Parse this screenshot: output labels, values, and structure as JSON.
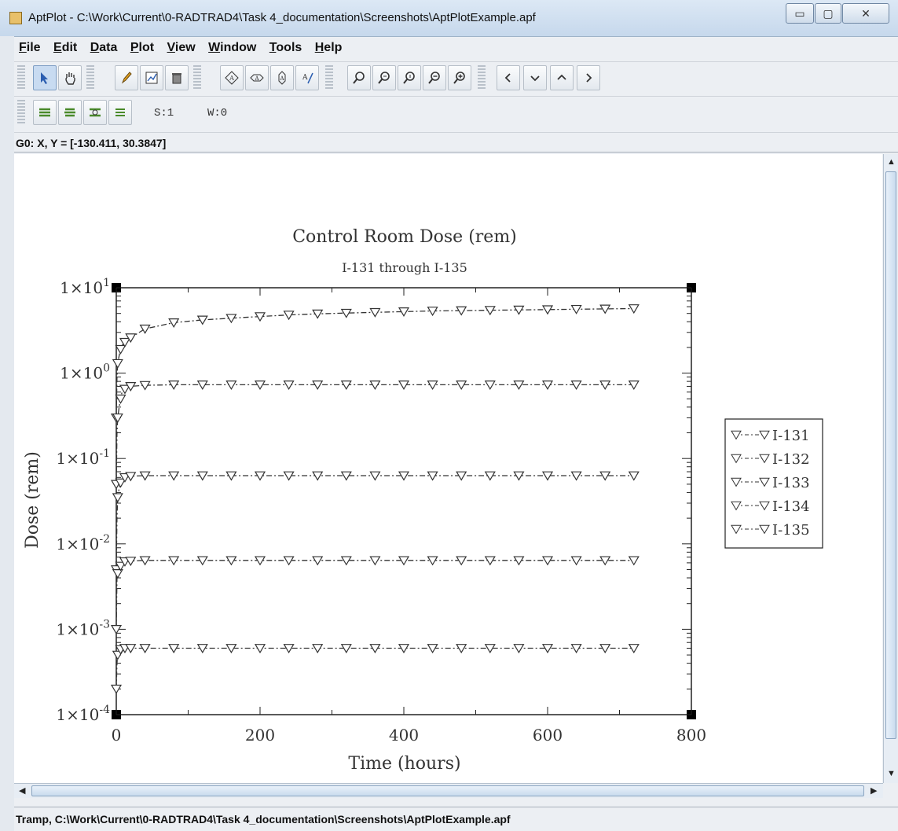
{
  "window": {
    "title": "AptPlot - C:\\Work\\Current\\0-RADTRAD4\\Task 4_documentation\\Screenshots\\AptPlotExample.apf",
    "controls": {
      "minimize": "▭",
      "maximize": "▢",
      "close": "✕"
    }
  },
  "menubar": {
    "items": [
      {
        "u": "F",
        "rest": "ile"
      },
      {
        "u": "E",
        "rest": "dit"
      },
      {
        "u": "D",
        "rest": "ata"
      },
      {
        "u": "P",
        "rest": "lot"
      },
      {
        "u": "V",
        "rest": "iew"
      },
      {
        "u": "W",
        "rest": "indow"
      },
      {
        "u": "T",
        "rest": "ools"
      },
      {
        "u": "H",
        "rest": "elp"
      }
    ]
  },
  "toolbar2": {
    "s_label": "S:1",
    "w_label": "W:0"
  },
  "coord_readout": "G0: X, Y = [-130.411, 30.3847]",
  "statusbar": {
    "text": "Tramp, C:\\Work\\Current\\0-RADTRAD4\\Task 4_documentation\\Screenshots\\AptPlotExample.apf"
  },
  "colors": {
    "accent": "#7f9fc4",
    "plot_line": "#333333"
  },
  "chart_data": {
    "type": "line",
    "title": "Control Room Dose (rem)",
    "subtitle": "I-131 through I-135",
    "xlabel": "Time (hours)",
    "ylabel": "Dose (rem)",
    "xlim": [
      0,
      800
    ],
    "ylim": [
      0.0001,
      10
    ],
    "yscale": "log",
    "x_ticks": [
      "0",
      "200",
      "400",
      "600",
      "800"
    ],
    "y_ticks": [
      {
        "base": "1×10",
        "exp": "1",
        "value": 10
      },
      {
        "base": "1×10",
        "exp": "0",
        "value": 1
      },
      {
        "base": "1×10",
        "exp": "-1",
        "value": 0.1
      },
      {
        "base": "1×10",
        "exp": "-2",
        "value": 0.01
      },
      {
        "base": "1×10",
        "exp": "-3",
        "value": 0.001
      },
      {
        "base": "1×10",
        "exp": "-4",
        "value": 0.0001
      }
    ],
    "legend_position": "right",
    "marker": "triangle-down",
    "series": [
      {
        "name": "I-131",
        "x": [
          0,
          1,
          2,
          4,
          6,
          8,
          12,
          20,
          40,
          80,
          120,
          160,
          200,
          240,
          280,
          320,
          360,
          400,
          440,
          480,
          520,
          560,
          600,
          640,
          680,
          720
        ],
        "y": [
          0.3,
          0.9,
          1.3,
          1.6,
          1.9,
          2.1,
          2.3,
          2.6,
          3.3,
          3.9,
          4.2,
          4.4,
          4.6,
          4.8,
          4.95,
          5.05,
          5.15,
          5.25,
          5.35,
          5.4,
          5.45,
          5.5,
          5.55,
          5.6,
          5.65,
          5.7
        ]
      },
      {
        "name": "I-132",
        "x": [
          0,
          1,
          2,
          4,
          6,
          8,
          12,
          20,
          40,
          80,
          120,
          160,
          200,
          240,
          280,
          320,
          360,
          400,
          440,
          480,
          520,
          560,
          600,
          640,
          680,
          720
        ],
        "y": [
          0.05,
          0.2,
          0.3,
          0.4,
          0.5,
          0.6,
          0.65,
          0.7,
          0.72,
          0.73,
          0.73,
          0.73,
          0.73,
          0.73,
          0.73,
          0.73,
          0.73,
          0.73,
          0.73,
          0.73,
          0.73,
          0.73,
          0.73,
          0.73,
          0.73,
          0.73
        ]
      },
      {
        "name": "I-133",
        "x": [
          0,
          1,
          2,
          4,
          6,
          8,
          12,
          20,
          40,
          80,
          120,
          160,
          200,
          240,
          280,
          320,
          360,
          400,
          440,
          480,
          520,
          560,
          600,
          640,
          680,
          720
        ],
        "y": [
          0.005,
          0.02,
          0.035,
          0.045,
          0.052,
          0.056,
          0.06,
          0.062,
          0.063,
          0.063,
          0.063,
          0.063,
          0.063,
          0.063,
          0.063,
          0.063,
          0.063,
          0.063,
          0.063,
          0.063,
          0.063,
          0.063,
          0.063,
          0.063,
          0.063,
          0.063
        ]
      },
      {
        "name": "I-134",
        "x": [
          0,
          1,
          2,
          4,
          6,
          8,
          12,
          20,
          40,
          80,
          120,
          160,
          200,
          240,
          280,
          320,
          360,
          400,
          440,
          480,
          520,
          560,
          600,
          640,
          680,
          720
        ],
        "y": [
          0.001,
          0.004,
          0.0045,
          0.005,
          0.0055,
          0.006,
          0.0062,
          0.0063,
          0.0064,
          0.0064,
          0.0064,
          0.0064,
          0.0064,
          0.0064,
          0.0064,
          0.0064,
          0.0064,
          0.0064,
          0.0064,
          0.0064,
          0.0064,
          0.0064,
          0.0064,
          0.0064,
          0.0064,
          0.0064
        ]
      },
      {
        "name": "I-135",
        "x": [
          0,
          1,
          2,
          4,
          6,
          8,
          12,
          20,
          40,
          80,
          120,
          160,
          200,
          240,
          280,
          320,
          360,
          400,
          440,
          480,
          520,
          560,
          600,
          640,
          680,
          720
        ],
        "y": [
          0.0002,
          0.0004,
          0.0005,
          0.00055,
          0.00058,
          0.0006,
          0.0006,
          0.0006,
          0.0006,
          0.0006,
          0.0006,
          0.0006,
          0.0006,
          0.0006,
          0.0006,
          0.0006,
          0.0006,
          0.0006,
          0.0006,
          0.0006,
          0.0006,
          0.0006,
          0.0006,
          0.0006,
          0.0006,
          0.0006
        ]
      }
    ]
  }
}
